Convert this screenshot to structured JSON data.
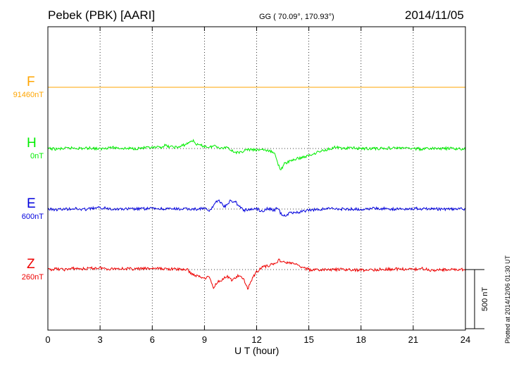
{
  "header": {
    "title": "Pebek (PBK)  [AARI]",
    "coords": "GG ( 70.09°, 170.93°)",
    "date": "2014/11/05"
  },
  "footer": {
    "plotted": "Plotted at 2014/12/06 01:30 UT"
  },
  "chart_data": {
    "type": "line",
    "title": "Pebek (PBK)  [AARI]",
    "xlabel": "U T (hour)",
    "xlim": [
      0,
      24
    ],
    "xticks": [
      "0",
      "3",
      "6",
      "9",
      "12",
      "15",
      "18",
      "21",
      "24"
    ],
    "grid": "dotted",
    "scale_bar_label": "500 nT",
    "scale_bar_nT": 500,
    "series": [
      {
        "name": "F",
        "baseline_label": "91460nT",
        "color": "#FFA500",
        "x": [
          0,
          24
        ],
        "y_offset_nT": [
          0,
          0
        ]
      },
      {
        "name": "H",
        "baseline_label": "0nT",
        "color": "#00EE00",
        "x": [
          0,
          0.5,
          1,
          1.5,
          2,
          2.5,
          3,
          3.5,
          4,
          4.5,
          5,
          5.5,
          6,
          6.5,
          6.7,
          7,
          7.5,
          8,
          8.3,
          8.6,
          9,
          9.3,
          9.6,
          10,
          10.3,
          10.6,
          11,
          11.3,
          11.6,
          12,
          12.3,
          12.6,
          13,
          13.2,
          13.4,
          13.6,
          14,
          14.5,
          15,
          15.5,
          16,
          16.5,
          17,
          17.5,
          18,
          19,
          20,
          21,
          21.5,
          22,
          23,
          24
        ],
        "y_offset_nT": [
          0,
          -5,
          0,
          5,
          0,
          5,
          -5,
          10,
          5,
          0,
          0,
          5,
          5,
          10,
          25,
          15,
          10,
          40,
          70,
          30,
          20,
          10,
          25,
          0,
          15,
          -20,
          -40,
          -15,
          -10,
          -15,
          -5,
          -20,
          -30,
          -120,
          -180,
          -130,
          -100,
          -80,
          -60,
          -30,
          -10,
          10,
          0,
          5,
          0,
          0,
          5,
          0,
          -5,
          0,
          0,
          -5
        ]
      },
      {
        "name": "E",
        "baseline_label": "600nT",
        "color": "#0000DD",
        "x": [
          0,
          0.5,
          1,
          1.5,
          2,
          2.5,
          3,
          3.5,
          4,
          5,
          6,
          7,
          8,
          8.5,
          9,
          9.3,
          9.6,
          9.8,
          10,
          10.2,
          10.5,
          10.8,
          11,
          11.3,
          11.6,
          12,
          12.3,
          12.6,
          13,
          13.2,
          13.4,
          13.6,
          14,
          14.5,
          15,
          15.5,
          16,
          17,
          18,
          19,
          20,
          21,
          22,
          23,
          24
        ],
        "y_offset_nT": [
          0,
          -5,
          0,
          5,
          -5,
          5,
          10,
          5,
          0,
          0,
          5,
          0,
          0,
          0,
          5,
          -20,
          50,
          80,
          40,
          20,
          70,
          60,
          20,
          -10,
          -5,
          5,
          -20,
          5,
          -10,
          10,
          -40,
          -55,
          -30,
          -25,
          -10,
          -5,
          5,
          0,
          0,
          5,
          0,
          5,
          0,
          0,
          0
        ]
      },
      {
        "name": "Z",
        "baseline_label": "260nT",
        "color": "#EE0000",
        "x": [
          0,
          0.5,
          1,
          1.5,
          2,
          2.5,
          3,
          3.5,
          4,
          5,
          6,
          7,
          8,
          8.3,
          8.6,
          9,
          9.3,
          9.5,
          9.7,
          10,
          10.3,
          10.6,
          10.9,
          11.2,
          11.5,
          11.8,
          12,
          12.3,
          12.6,
          13,
          13.3,
          13.6,
          14,
          14.3,
          14.6,
          15,
          15.5,
          16,
          17,
          18,
          19,
          20,
          21,
          21.5,
          22,
          23,
          24
        ],
        "y_offset_nT": [
          0,
          5,
          0,
          10,
          5,
          10,
          15,
          5,
          10,
          5,
          10,
          5,
          0,
          -40,
          -55,
          -70,
          -60,
          -160,
          -110,
          -85,
          -60,
          -90,
          -55,
          -70,
          -160,
          -60,
          -20,
          20,
          30,
          50,
          80,
          60,
          55,
          40,
          20,
          0,
          -5,
          0,
          0,
          -5,
          0,
          5,
          0,
          10,
          -5,
          0,
          0
        ]
      }
    ]
  }
}
